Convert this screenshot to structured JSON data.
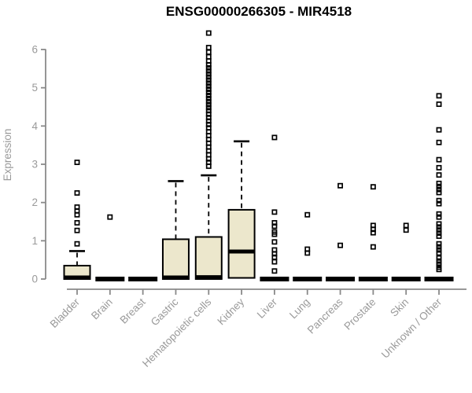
{
  "chart_data": {
    "type": "boxplot",
    "title": "ENSG00000266305 - MIR4518",
    "ylabel": "Expression",
    "ylim": [
      0,
      6
    ],
    "yticks": [
      0,
      1,
      2,
      3,
      4,
      5,
      6
    ],
    "grid": "off",
    "legend": "none",
    "categories": [
      "Bladder",
      "Brain",
      "Breast",
      "Gastric",
      "Hematopoietic cells",
      "Kidney",
      "Liver",
      "Lung",
      "Pancreas",
      "Prostate",
      "Skin",
      "Unknown / Other"
    ],
    "colors": {
      "box_fill": "#ece7cc",
      "box_stroke": "#000000",
      "median": "#000000",
      "outlier": "#000000",
      "axis_line": "#8a8a8a",
      "tick_label": "#9a9a9a",
      "title": "#000000",
      "background": "#ffffff"
    },
    "boxes": [
      {
        "category": "Bladder",
        "q1": 0,
        "median": 0.04,
        "q3": 0.35,
        "whisker_low": 0,
        "whisker_high": 0.73,
        "outliers": [
          0.92,
          1.27,
          1.47,
          1.68,
          1.78,
          1.88,
          2.25,
          3.05
        ]
      },
      {
        "category": "Brain",
        "q1": 0,
        "median": 0,
        "q3": 0,
        "whisker_low": 0,
        "whisker_high": 0,
        "outliers": [
          1.62
        ]
      },
      {
        "category": "Breast",
        "q1": 0,
        "median": 0,
        "q3": 0,
        "whisker_low": 0,
        "whisker_high": 0,
        "outliers": []
      },
      {
        "category": "Gastric",
        "q1": 0,
        "median": 0.04,
        "q3": 1.04,
        "whisker_low": 0,
        "whisker_high": 2.56,
        "outliers": []
      },
      {
        "category": "Hematopoietic cells",
        "q1": 0,
        "median": 0.05,
        "q3": 1.1,
        "whisker_low": 0,
        "whisker_high": 2.71,
        "outliers": [
          2.95,
          3.05,
          3.14,
          3.25,
          3.35,
          3.45,
          3.55,
          3.65,
          3.75,
          3.85,
          3.95,
          4.04,
          4.13,
          4.22,
          4.31,
          4.4,
          4.48,
          4.56,
          4.64,
          4.72,
          4.8,
          4.88,
          4.96,
          5.04,
          5.12,
          5.2,
          5.28,
          5.36,
          5.44,
          5.52,
          5.6,
          5.7,
          5.81,
          5.93,
          6.05,
          6.43
        ]
      },
      {
        "category": "Kidney",
        "q1": 0.03,
        "median": 0.72,
        "q3": 1.81,
        "whisker_low": 0.03,
        "whisker_high": 3.6,
        "outliers": []
      },
      {
        "category": "Liver",
        "q1": 0,
        "median": 0,
        "q3": 0,
        "whisker_low": 0,
        "whisker_high": 0,
        "outliers": [
          0.21,
          0.45,
          0.57,
          0.66,
          0.76,
          0.97,
          1.17,
          1.23,
          1.38,
          1.47,
          1.75,
          3.7
        ]
      },
      {
        "category": "Lung",
        "q1": 0,
        "median": 0,
        "q3": 0,
        "whisker_low": 0,
        "whisker_high": 0,
        "outliers": [
          0.68,
          0.78,
          1.68
        ]
      },
      {
        "category": "Pancreas",
        "q1": 0,
        "median": 0,
        "q3": 0,
        "whisker_low": 0,
        "whisker_high": 0,
        "outliers": [
          0.88,
          2.44
        ]
      },
      {
        "category": "Prostate",
        "q1": 0,
        "median": 0,
        "q3": 0,
        "whisker_low": 0,
        "whisker_high": 0,
        "outliers": [
          0.84,
          1.21,
          1.3,
          1.4,
          2.41
        ]
      },
      {
        "category": "Skin",
        "q1": 0,
        "median": 0,
        "q3": 0,
        "whisker_low": 0,
        "whisker_high": 0,
        "outliers": [
          1.28,
          1.4
        ]
      },
      {
        "category": "Unknown / Other",
        "q1": 0,
        "median": 0,
        "q3": 0,
        "whisker_low": 0,
        "whisker_high": 0,
        "outliers": [
          0.25,
          0.31,
          0.39,
          0.47,
          0.55,
          0.68,
          0.76,
          0.84,
          0.92,
          1.12,
          1.2,
          1.28,
          1.36,
          1.44,
          1.62,
          1.7,
          1.97,
          2.05,
          2.26,
          2.34,
          2.42,
          2.5,
          2.72,
          2.91,
          3.12,
          3.57,
          3.9,
          4.57,
          4.79
        ]
      }
    ]
  }
}
